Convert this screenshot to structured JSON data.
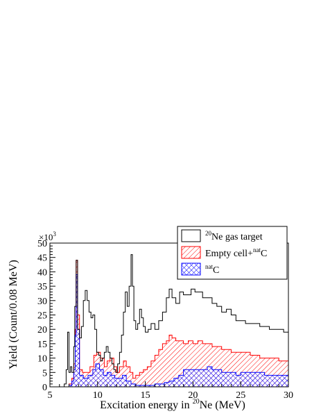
{
  "chart_data": {
    "type": "area",
    "title": "",
    "xlabel_parts": {
      "pre": "Excitation energy in ",
      "sup": "20",
      "post": "Ne (MeV)"
    },
    "ylabel": "Yield (Count/0.08 MeV)",
    "y_multiplier": {
      "base": "×10",
      "exp": "3"
    },
    "xlim": [
      5,
      30
    ],
    "ylim": [
      0,
      50
    ],
    "x_ticks": [
      5,
      10,
      15,
      20,
      25,
      30
    ],
    "y_ticks": [
      0,
      5,
      10,
      15,
      20,
      25,
      30,
      35,
      40,
      45,
      50
    ],
    "grid": false,
    "legend_position": "top-right",
    "series": [
      {
        "name_parts": {
          "sup": "20",
          "post": "Ne gas target"
        },
        "style": "step-outline",
        "color": "#000000",
        "points": [
          [
            6.3,
            0
          ],
          [
            6.5,
            1
          ],
          [
            6.7,
            6
          ],
          [
            6.85,
            19
          ],
          [
            7.0,
            5
          ],
          [
            7.15,
            7
          ],
          [
            7.3,
            5
          ],
          [
            7.5,
            14
          ],
          [
            7.6,
            28
          ],
          [
            7.75,
            44
          ],
          [
            7.9,
            20
          ],
          [
            8.1,
            17
          ],
          [
            8.3,
            21
          ],
          [
            8.5,
            30
          ],
          [
            8.7,
            33.5
          ],
          [
            8.9,
            30
          ],
          [
            9.1,
            26
          ],
          [
            9.3,
            24
          ],
          [
            9.5,
            25
          ],
          [
            9.7,
            20
          ],
          [
            9.9,
            12
          ],
          [
            10.1,
            11
          ],
          [
            10.3,
            9
          ],
          [
            10.5,
            10
          ],
          [
            10.7,
            12
          ],
          [
            10.9,
            14
          ],
          [
            11.1,
            12
          ],
          [
            11.3,
            10
          ],
          [
            11.5,
            8
          ],
          [
            11.7,
            6
          ],
          [
            11.9,
            5
          ],
          [
            12.1,
            8
          ],
          [
            12.3,
            12
          ],
          [
            12.5,
            18
          ],
          [
            12.7,
            26
          ],
          [
            12.9,
            33
          ],
          [
            13.1,
            28
          ],
          [
            13.3,
            35
          ],
          [
            13.5,
            46
          ],
          [
            13.65,
            35
          ],
          [
            13.8,
            23
          ],
          [
            14.0,
            20
          ],
          [
            14.2,
            22
          ],
          [
            14.4,
            27
          ],
          [
            14.6,
            24
          ],
          [
            14.8,
            21
          ],
          [
            15.0,
            19
          ],
          [
            15.3,
            20
          ],
          [
            15.6,
            22
          ],
          [
            16.0,
            20
          ],
          [
            16.4,
            23
          ],
          [
            16.8,
            26
          ],
          [
            17.2,
            31
          ],
          [
            17.5,
            34
          ],
          [
            17.8,
            31
          ],
          [
            18.2,
            29
          ],
          [
            18.6,
            33
          ],
          [
            19.0,
            32
          ],
          [
            19.4,
            32
          ],
          [
            19.8,
            34
          ],
          [
            20.2,
            33
          ],
          [
            20.6,
            33
          ],
          [
            21.0,
            31
          ],
          [
            21.5,
            31
          ],
          [
            22.0,
            29
          ],
          [
            22.5,
            28
          ],
          [
            23.0,
            26
          ],
          [
            23.5,
            27
          ],
          [
            24.0,
            25
          ],
          [
            24.5,
            23
          ],
          [
            25.0,
            23
          ],
          [
            25.5,
            22
          ],
          [
            26.0,
            22
          ],
          [
            26.5,
            22
          ],
          [
            27.0,
            21
          ],
          [
            27.5,
            21
          ],
          [
            28.0,
            20
          ],
          [
            28.5,
            20
          ],
          [
            29.0,
            20
          ],
          [
            29.5,
            19
          ],
          [
            30.0,
            19
          ]
        ]
      },
      {
        "name_parts": {
          "pre": "Empty cell+",
          "sup": "nat",
          "post": "C"
        },
        "style": "hatched-fill",
        "color": "#ff0000",
        "points": [
          [
            6.5,
            0
          ],
          [
            7.0,
            1
          ],
          [
            7.3,
            3
          ],
          [
            7.5,
            8
          ],
          [
            7.65,
            20
          ],
          [
            7.75,
            44
          ],
          [
            7.9,
            25
          ],
          [
            8.1,
            6
          ],
          [
            8.4,
            5
          ],
          [
            8.8,
            5
          ],
          [
            9.2,
            7
          ],
          [
            9.6,
            11
          ],
          [
            9.9,
            12
          ],
          [
            10.3,
            10
          ],
          [
            10.7,
            7
          ],
          [
            11.0,
            9
          ],
          [
            11.3,
            10
          ],
          [
            11.7,
            7
          ],
          [
            12.0,
            5
          ],
          [
            12.3,
            7
          ],
          [
            12.7,
            9
          ],
          [
            13.0,
            7
          ],
          [
            13.4,
            5
          ],
          [
            13.7,
            3
          ],
          [
            14.0,
            4
          ],
          [
            14.4,
            5
          ],
          [
            14.8,
            6
          ],
          [
            15.2,
            7
          ],
          [
            15.6,
            9
          ],
          [
            16.0,
            11
          ],
          [
            16.4,
            13
          ],
          [
            16.8,
            15
          ],
          [
            17.2,
            16
          ],
          [
            17.5,
            18
          ],
          [
            17.8,
            17
          ],
          [
            18.2,
            16
          ],
          [
            18.6,
            16
          ],
          [
            19.0,
            15
          ],
          [
            19.5,
            16
          ],
          [
            20.0,
            15
          ],
          [
            20.5,
            16
          ],
          [
            21.0,
            15
          ],
          [
            21.5,
            15
          ],
          [
            22.0,
            14
          ],
          [
            22.5,
            14
          ],
          [
            23.0,
            13
          ],
          [
            23.5,
            13
          ],
          [
            24.0,
            12
          ],
          [
            24.5,
            12
          ],
          [
            25.0,
            12
          ],
          [
            25.5,
            12
          ],
          [
            26.0,
            11
          ],
          [
            26.5,
            11
          ],
          [
            27.0,
            10
          ],
          [
            27.5,
            10
          ],
          [
            28.0,
            10
          ],
          [
            28.5,
            10
          ],
          [
            29.0,
            9
          ],
          [
            29.5,
            9
          ],
          [
            30.0,
            9
          ]
        ]
      },
      {
        "name_parts": {
          "sup": "nat",
          "post": "C"
        },
        "style": "hatched-fill",
        "color": "#0000ff",
        "points": [
          [
            6.5,
            0
          ],
          [
            7.0,
            0.5
          ],
          [
            7.3,
            2
          ],
          [
            7.5,
            6
          ],
          [
            7.65,
            18
          ],
          [
            7.75,
            39
          ],
          [
            7.9,
            20
          ],
          [
            8.1,
            4
          ],
          [
            8.5,
            3
          ],
          [
            9.0,
            4
          ],
          [
            9.5,
            6
          ],
          [
            9.8,
            8
          ],
          [
            10.2,
            6
          ],
          [
            10.6,
            4
          ],
          [
            11.0,
            5
          ],
          [
            11.4,
            4
          ],
          [
            11.8,
            3
          ],
          [
            12.2,
            3
          ],
          [
            12.6,
            4
          ],
          [
            13.0,
            2
          ],
          [
            13.5,
            1
          ],
          [
            14.0,
            0.5
          ],
          [
            15.0,
            0.5
          ],
          [
            16.0,
            1
          ],
          [
            17.0,
            1.5
          ],
          [
            17.5,
            2
          ],
          [
            18.0,
            3
          ],
          [
            18.5,
            4
          ],
          [
            19.0,
            6
          ],
          [
            19.5,
            6
          ],
          [
            20.0,
            6
          ],
          [
            20.5,
            6
          ],
          [
            21.0,
            6
          ],
          [
            21.5,
            7
          ],
          [
            22.0,
            6
          ],
          [
            22.5,
            6
          ],
          [
            23.0,
            5
          ],
          [
            23.5,
            5
          ],
          [
            24.0,
            5
          ],
          [
            24.5,
            4
          ],
          [
            25.0,
            5
          ],
          [
            25.5,
            5
          ],
          [
            26.0,
            5
          ],
          [
            26.5,
            5
          ],
          [
            27.0,
            5
          ],
          [
            27.5,
            4
          ],
          [
            28.0,
            4
          ],
          [
            28.5,
            4
          ],
          [
            29.0,
            4
          ],
          [
            29.5,
            4
          ],
          [
            30.0,
            4
          ]
        ]
      }
    ]
  }
}
